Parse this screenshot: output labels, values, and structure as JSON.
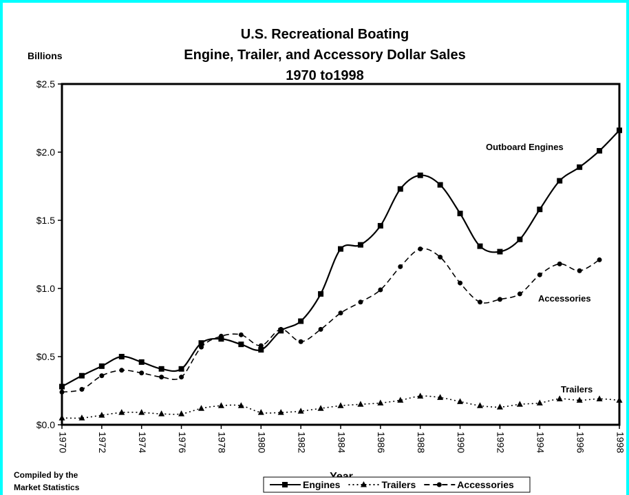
{
  "chart_data": {
    "type": "line",
    "title": [
      "U.S. Recreational Boating",
      "Engine, Trailer, and Accessory Dollar Sales",
      "1970 to1998"
    ],
    "y_label": "Billions",
    "x_label": "Year",
    "x": [
      1970,
      1971,
      1972,
      1973,
      1974,
      1975,
      1976,
      1977,
      1978,
      1979,
      1980,
      1981,
      1982,
      1983,
      1984,
      1985,
      1986,
      1987,
      1988,
      1989,
      1990,
      1991,
      1992,
      1993,
      1994,
      1995,
      1996,
      1997,
      1998
    ],
    "series": [
      {
        "name": "Engines",
        "color": "#000000",
        "marker": "square",
        "dash": "solid",
        "values": [
          0.28,
          0.36,
          0.43,
          0.5,
          0.46,
          0.41,
          0.41,
          0.6,
          0.63,
          0.59,
          0.55,
          0.69,
          0.76,
          0.96,
          1.29,
          1.32,
          1.46,
          1.73,
          1.83,
          1.76,
          1.55,
          1.31,
          1.27,
          1.36,
          1.58,
          1.79,
          1.89,
          2.01,
          2.16
        ]
      },
      {
        "name": "Trailers",
        "color": "#000000",
        "marker": "triangle",
        "dash": "dotted",
        "values": [
          0.05,
          0.05,
          0.07,
          0.09,
          0.09,
          0.08,
          0.08,
          0.12,
          0.14,
          0.14,
          0.09,
          0.09,
          0.1,
          0.12,
          0.14,
          0.15,
          0.16,
          0.18,
          0.21,
          0.2,
          0.17,
          0.14,
          0.13,
          0.15,
          0.16,
          0.19,
          0.18,
          0.19,
          0.18
        ]
      },
      {
        "name": "Accessories",
        "color": "#000000",
        "marker": "circle",
        "dash": "dashed",
        "values": [
          0.24,
          0.26,
          0.36,
          0.4,
          0.38,
          0.35,
          0.35,
          0.57,
          0.65,
          0.66,
          0.58,
          0.7,
          0.61,
          0.7,
          0.82,
          0.9,
          0.99,
          1.16,
          1.29,
          1.23,
          1.04,
          0.9,
          0.92,
          0.96,
          1.1,
          1.18,
          1.13,
          1.21,
          null
        ]
      }
    ],
    "annotations": [
      "Outboard Engines",
      "Accessories",
      "Trailers"
    ],
    "source": [
      "Compiled by the",
      "Market Statistics"
    ],
    "xlim": [
      1970,
      1998
    ],
    "xticks": [
      1970,
      1972,
      1974,
      1976,
      1978,
      1980,
      1982,
      1984,
      1986,
      1988,
      1990,
      1992,
      1994,
      1996,
      1998
    ],
    "ylim": [
      0,
      2.5
    ],
    "yticks": [
      {
        "value": 0,
        "label": "$0.0"
      },
      {
        "value": 0.5,
        "label": "$0.5"
      },
      {
        "value": 1.0,
        "label": "$1.0"
      },
      {
        "value": 1.5,
        "label": "$1.5"
      },
      {
        "value": 2.0,
        "label": "$2.0"
      },
      {
        "value": 2.5,
        "label": "$2.5"
      }
    ],
    "legend": "bottom"
  }
}
